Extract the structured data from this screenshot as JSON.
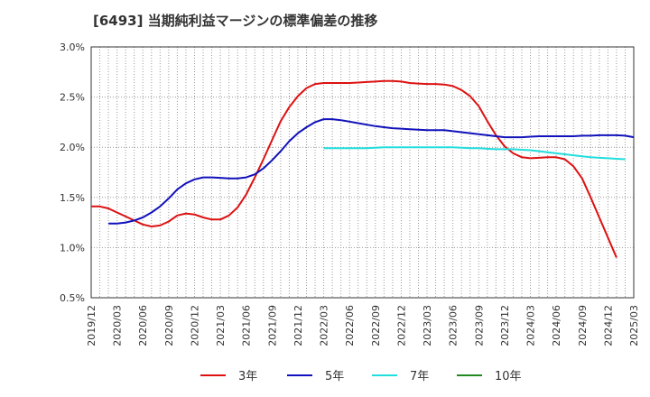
{
  "title": "[6493]  当期純利益マージンの標準偏差の推移",
  "chart_data": {
    "type": "line",
    "title": "[6493]  当期純利益マージンの標準偏差の推移",
    "xlabel": "",
    "ylabel": "",
    "ylim": [
      0.5,
      3.0
    ],
    "y_ticks": [
      "0.5%",
      "1.0%",
      "1.5%",
      "2.0%",
      "2.5%",
      "3.0%"
    ],
    "y_tick_values": [
      0.5,
      1.0,
      1.5,
      2.0,
      2.5,
      3.0
    ],
    "x_ticks": [
      "2019/12",
      "2020/03",
      "2020/06",
      "2020/09",
      "2020/12",
      "2021/03",
      "2021/06",
      "2021/09",
      "2021/12",
      "2022/03",
      "2022/06",
      "2022/09",
      "2022/12",
      "2023/03",
      "2023/06",
      "2023/09",
      "2023/12",
      "2024/03",
      "2024/06",
      "2024/09",
      "2024/12",
      "2025/03"
    ],
    "x_months_total": 63,
    "grid": true,
    "legend_position": "bottom",
    "series": [
      {
        "name": "3年",
        "color": "#dd1111",
        "start_index": 0,
        "values": [
          1.41,
          1.41,
          1.39,
          1.35,
          1.31,
          1.27,
          1.23,
          1.21,
          1.22,
          1.26,
          1.32,
          1.34,
          1.33,
          1.3,
          1.28,
          1.28,
          1.32,
          1.4,
          1.53,
          1.7,
          1.88,
          2.07,
          2.26,
          2.4,
          2.51,
          2.59,
          2.63,
          2.64,
          2.64,
          2.64,
          2.64,
          2.645,
          2.65,
          2.655,
          2.66,
          2.66,
          2.655,
          2.64,
          2.635,
          2.63,
          2.63,
          2.625,
          2.61,
          2.57,
          2.51,
          2.41,
          2.26,
          2.12,
          2.01,
          1.94,
          1.9,
          1.89,
          1.895,
          1.9,
          1.9,
          1.88,
          1.81,
          1.69,
          1.5,
          1.3,
          1.1,
          0.9
        ]
      },
      {
        "name": "5年",
        "color": "#1111bb",
        "start_index": 2,
        "values": [
          1.24,
          1.24,
          1.25,
          1.27,
          1.3,
          1.35,
          1.41,
          1.49,
          1.58,
          1.64,
          1.68,
          1.7,
          1.7,
          1.695,
          1.69,
          1.69,
          1.7,
          1.73,
          1.79,
          1.87,
          1.96,
          2.06,
          2.14,
          2.2,
          2.25,
          2.28,
          2.28,
          2.27,
          2.255,
          2.24,
          2.225,
          2.21,
          2.2,
          2.19,
          2.185,
          2.18,
          2.175,
          2.17,
          2.17,
          2.17,
          2.16,
          2.15,
          2.14,
          2.13,
          2.12,
          2.11,
          2.1,
          2.1,
          2.1,
          2.105,
          2.11,
          2.11,
          2.11,
          2.11,
          2.11,
          2.115,
          2.115,
          2.12,
          2.12,
          2.12,
          2.115,
          2.1
        ]
      },
      {
        "name": "7年",
        "color": "#22dddd",
        "start_index": 27,
        "values": [
          1.99,
          1.99,
          1.99,
          1.99,
          1.99,
          1.99,
          1.995,
          2.0,
          2.0,
          2.0,
          2.0,
          2.0,
          2.0,
          2.0,
          2.0,
          2.0,
          1.995,
          1.99,
          1.99,
          1.985,
          1.98,
          1.98,
          1.98,
          1.975,
          1.97,
          1.96,
          1.95,
          1.94,
          1.93,
          1.92,
          1.91,
          1.9,
          1.895,
          1.89,
          1.885,
          1.88
        ]
      },
      {
        "name": "10年",
        "color": "#228822",
        "start_index": 0,
        "values": []
      }
    ]
  }
}
